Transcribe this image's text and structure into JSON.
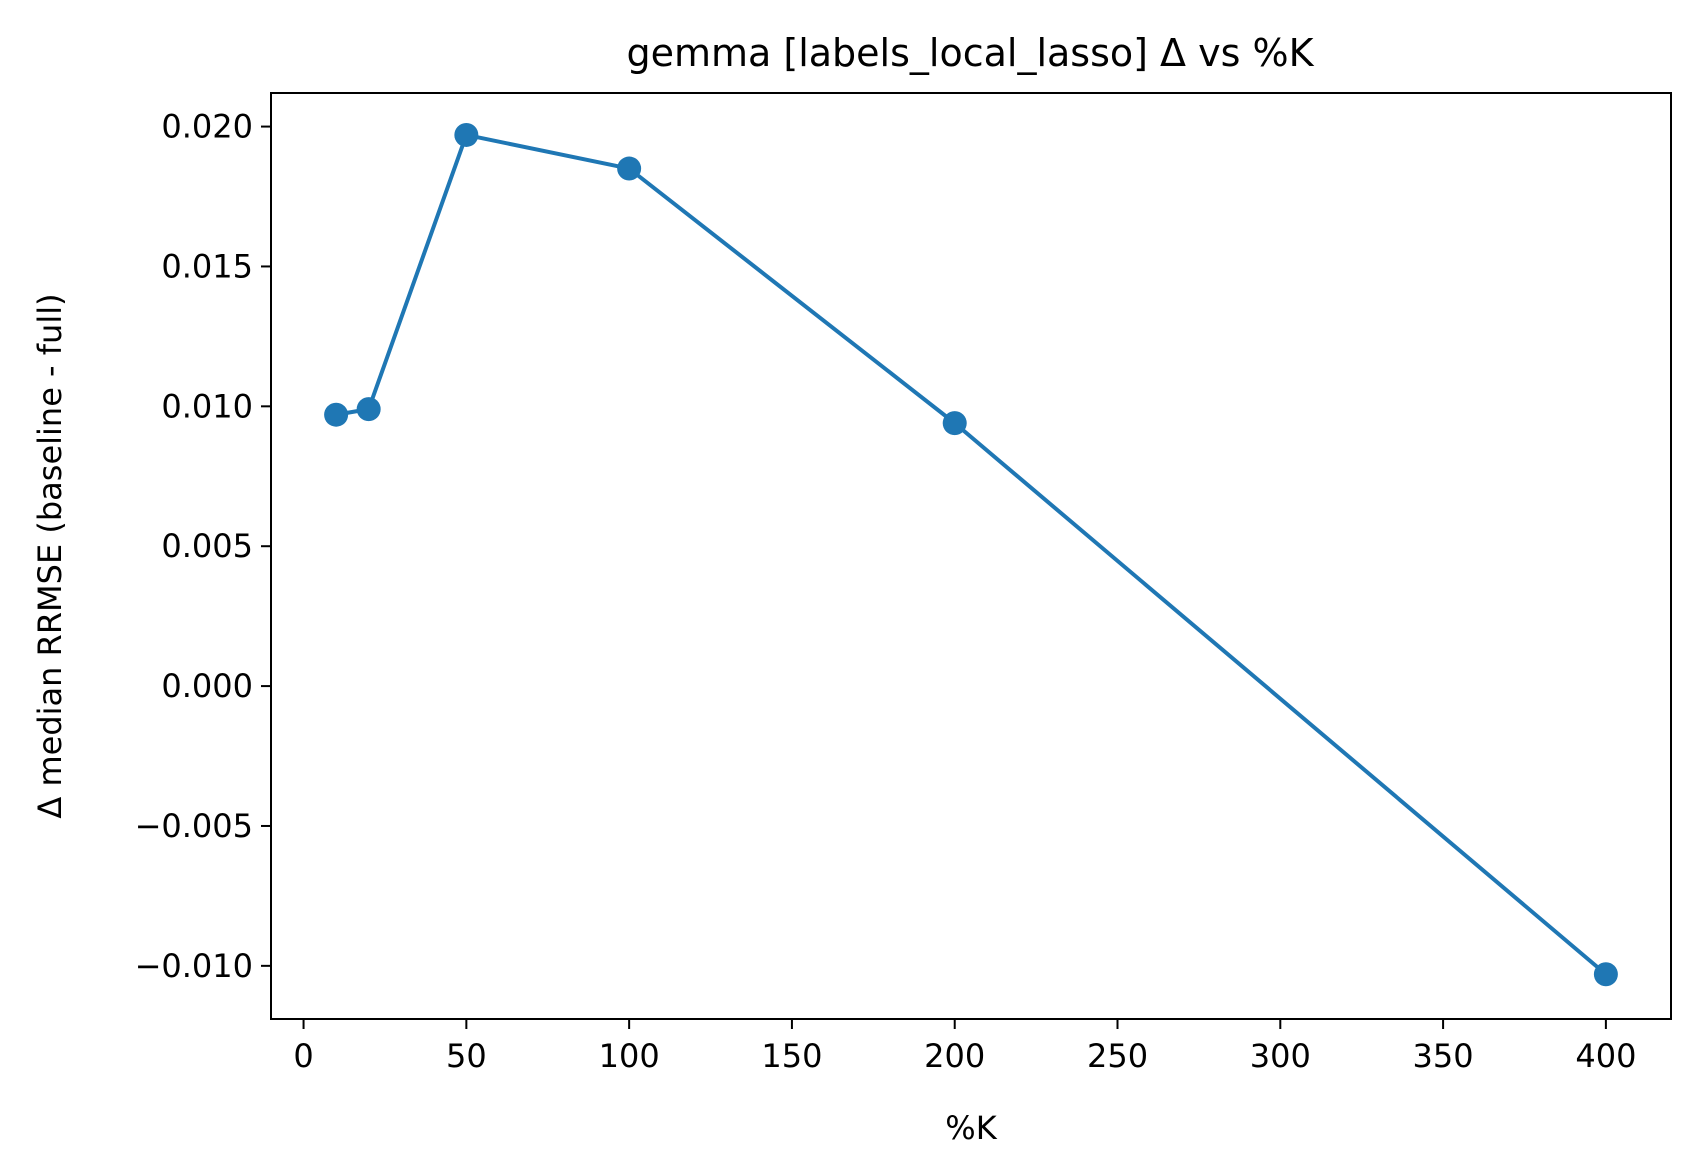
{
  "chart_data": {
    "type": "line",
    "title": "gemma [labels_local_lasso] Δ vs %K",
    "xlabel": "%K",
    "ylabel": "Δ median RRMSE (baseline - full)",
    "xlim": [
      -10,
      420
    ],
    "ylim": [
      -0.0119,
      0.0212
    ],
    "x_ticks": [
      0,
      50,
      100,
      150,
      200,
      250,
      300,
      350,
      400
    ],
    "x_tick_labels": [
      "0",
      "50",
      "100",
      "150",
      "200",
      "250",
      "300",
      "350",
      "400"
    ],
    "y_ticks": [
      -0.01,
      -0.005,
      0.0,
      0.005,
      0.01,
      0.015,
      0.02
    ],
    "y_tick_labels": [
      "−0.010",
      "−0.005",
      "0.000",
      "0.005",
      "0.010",
      "0.015",
      "0.020"
    ],
    "grid": false,
    "series": [
      {
        "color": "#1f77b4",
        "marker": "circle",
        "x": [
          10,
          20,
          50,
          100,
          200,
          400
        ],
        "y": [
          0.0097,
          0.0099,
          0.0197,
          0.0185,
          0.0094,
          -0.0103
        ]
      }
    ]
  }
}
